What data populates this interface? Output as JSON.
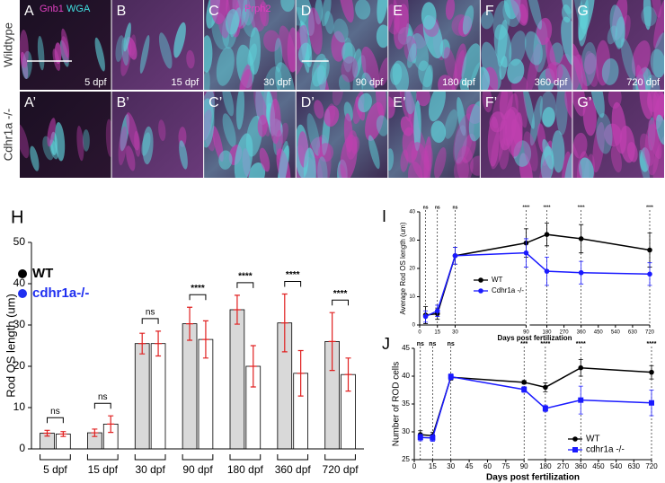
{
  "images": {
    "row_labels": [
      "Wildtype",
      "Cdhr1a -/-"
    ],
    "stains": [
      "Gnb1",
      "WGA",
      "Prph2"
    ],
    "rows": [
      [
        {
          "label": "A",
          "caption": "5 dpf"
        },
        {
          "label": "B",
          "caption": "15 dpf"
        },
        {
          "label": "C",
          "caption": "30 dpf"
        },
        {
          "label": "D",
          "caption": "90 dpf"
        },
        {
          "label": "E",
          "caption": "180 dpf"
        },
        {
          "label": "F",
          "caption": "360 dpf"
        },
        {
          "label": "G",
          "caption": "720 dpf"
        }
      ],
      [
        {
          "label": "A’"
        },
        {
          "label": "B’"
        },
        {
          "label": "C’"
        },
        {
          "label": "D’"
        },
        {
          "label": "E’"
        },
        {
          "label": "F’"
        },
        {
          "label": "G’"
        }
      ]
    ]
  },
  "chart_data": [
    {
      "type": "bar",
      "label": "H",
      "ylabel": "Rod OS length (um)",
      "categories": [
        "5 dpf",
        "15 dpf",
        "30 dpf",
        "90 dpf",
        "180 dpf",
        "360 dpf",
        "720 dpf"
      ],
      "series": [
        {
          "name": "WT",
          "color": "#000000",
          "bar_color": "#d9d9d9",
          "values": [
            3.8,
            3.9,
            25.5,
            30.3,
            33.7,
            30.5,
            26
          ],
          "errors": [
            0.7,
            0.9,
            2.5,
            4,
            3.5,
            7,
            7
          ]
        },
        {
          "name": "cdhr1a-/-",
          "color": "#1f2ff0",
          "bar_color": "#ffffff",
          "values": [
            3.6,
            6,
            25.5,
            26.5,
            20,
            18.3,
            18
          ],
          "errors": [
            0.6,
            2,
            3,
            4.5,
            5,
            5.5,
            4
          ]
        }
      ],
      "error_color": "#e02020",
      "ylim": [
        0,
        50
      ],
      "yticks": [
        0,
        10,
        20,
        30,
        40,
        50
      ],
      "significance": [
        "ns",
        "ns",
        "ns",
        "****",
        "****",
        "****",
        "****"
      ]
    },
    {
      "type": "line",
      "label": "I",
      "ylabel": "Average Rod OS length (um)",
      "xlabel": "Days post fertilization",
      "x": [
        5,
        15,
        30,
        90,
        180,
        360,
        720
      ],
      "series": [
        {
          "name": "WT",
          "color": "#000000",
          "marker": "circle",
          "values": [
            3.5,
            4,
            24.5,
            29,
            32,
            30.5,
            26.5
          ],
          "errors": [
            3,
            2,
            3,
            5,
            4,
            5,
            6
          ]
        },
        {
          "name": "Cdhr1a -/-",
          "color": "#1a1aff",
          "marker": "circle",
          "values": [
            3,
            5,
            24.5,
            25.5,
            19,
            18.5,
            18
          ],
          "errors": [
            2,
            2,
            3,
            5,
            5,
            4,
            4
          ]
        }
      ],
      "xlim": [
        [
          0,
          90
        ],
        [
          90,
          720
        ]
      ],
      "xticks": [
        0,
        15,
        30,
        90,
        180,
        270,
        360,
        450,
        540,
        630,
        720
      ],
      "ylim": [
        0,
        40
      ],
      "yticks": [
        0,
        10,
        20,
        30,
        40
      ],
      "significance": [
        "ns",
        "ns",
        "ns",
        "****",
        "****",
        "****",
        "****"
      ]
    },
    {
      "type": "line",
      "label": "J",
      "ylabel": "Number of ROD cells",
      "xlabel": "Days post fertilization",
      "x": [
        5,
        15,
        30,
        90,
        180,
        360,
        720
      ],
      "series": [
        {
          "name": "WT",
          "color": "#000000",
          "marker": "circle",
          "values": [
            29.5,
            29.3,
            39.8,
            38.9,
            38,
            41.5,
            40.7
          ],
          "errors": [
            0.7,
            0.6,
            0.5,
            0.3,
            0.8,
            1.5,
            1.2
          ]
        },
        {
          "name": "cdhr1a -/-",
          "color": "#1a1aff",
          "marker": "square",
          "values": [
            29,
            28.9,
            39.9,
            37.6,
            34.2,
            35.7,
            35.2
          ],
          "errors": [
            0.6,
            0.6,
            0.5,
            0.5,
            0.6,
            2.5,
            2.3
          ]
        }
      ],
      "xlim": [
        [
          0,
          90
        ],
        [
          90,
          720
        ]
      ],
      "xticks": [
        0,
        15,
        30,
        45,
        60,
        75,
        90,
        180,
        270,
        360,
        450,
        540,
        630,
        720
      ],
      "ylim": [
        25,
        45
      ],
      "yticks": [
        25,
        30,
        35,
        40,
        45
      ],
      "significance": [
        "ns",
        "ns",
        "ns",
        "***",
        "****",
        "****",
        "****"
      ]
    }
  ]
}
